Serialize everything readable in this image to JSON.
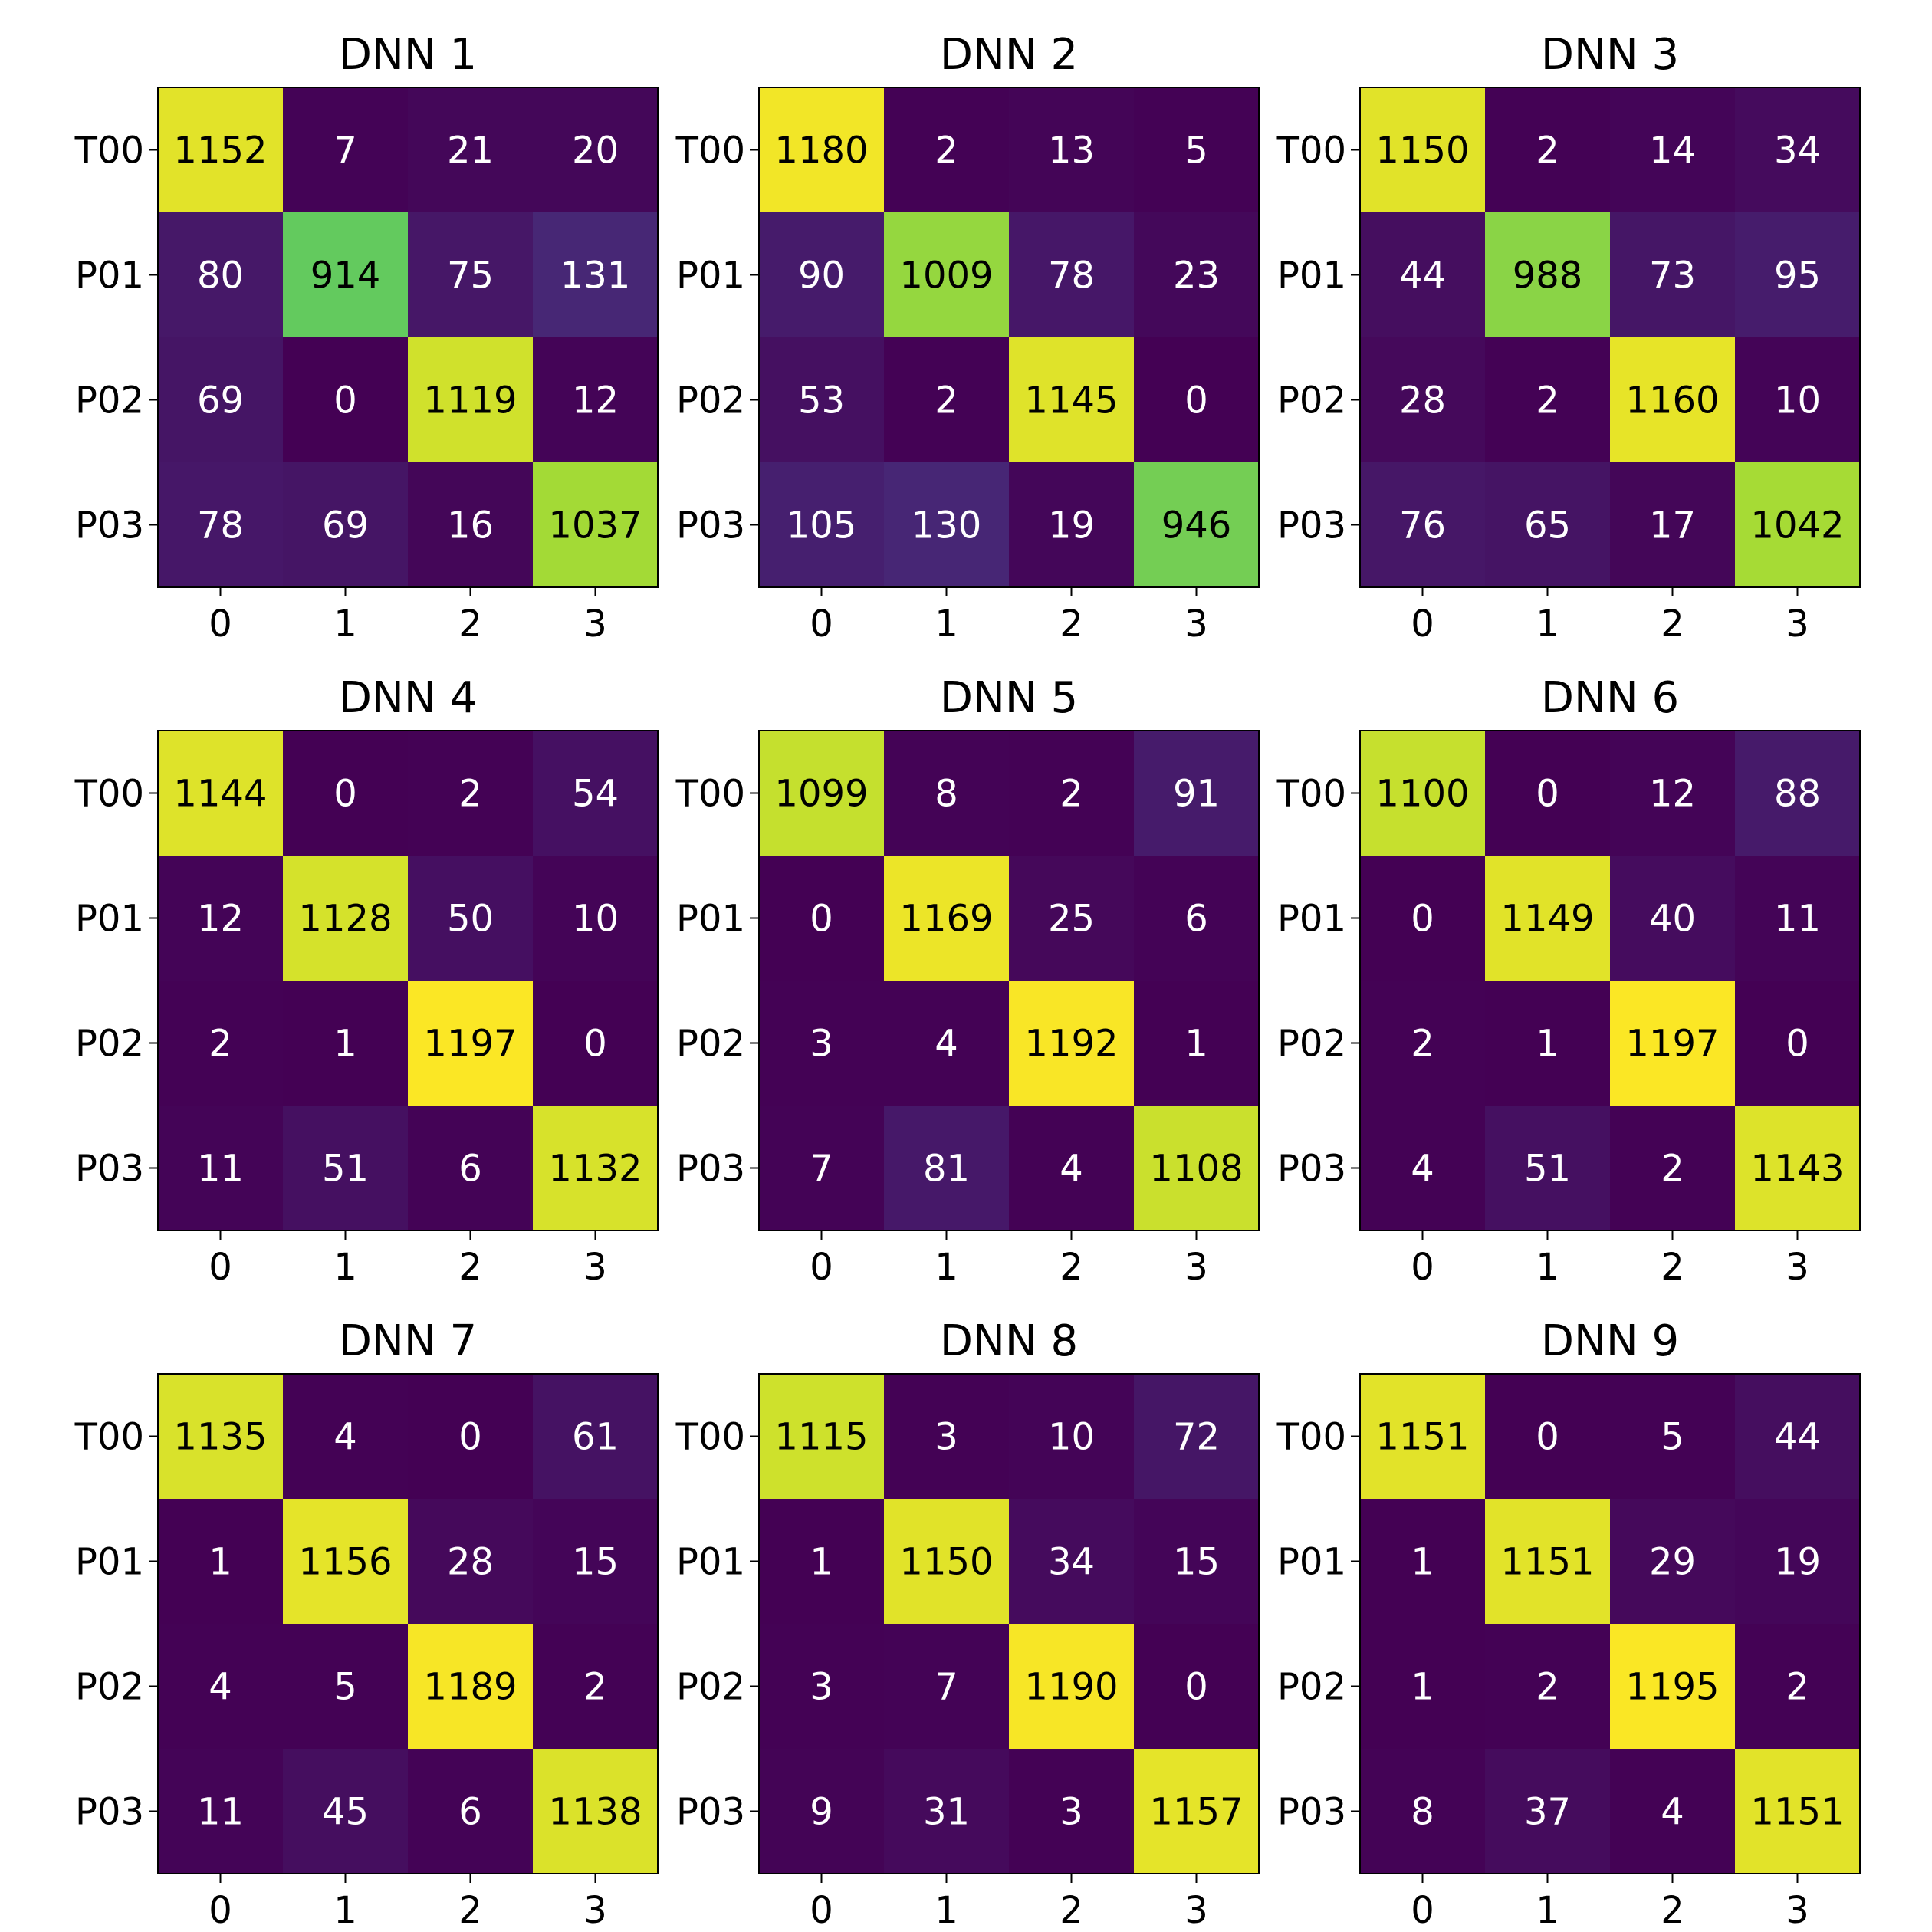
{
  "chart_data": [
    {
      "type": "heatmap",
      "title": "DNN 1",
      "row_labels": [
        "T00",
        "P01",
        "P02",
        "P03"
      ],
      "col_labels": [
        "0",
        "1",
        "2",
        "3"
      ],
      "values": [
        [
          1152,
          7,
          21,
          20
        ],
        [
          80,
          914,
          75,
          131
        ],
        [
          69,
          0,
          1119,
          12
        ],
        [
          78,
          69,
          16,
          1037
        ]
      ],
      "colormap": "viridis",
      "value_range": [
        0,
        1200
      ]
    },
    {
      "type": "heatmap",
      "title": "DNN 2",
      "row_labels": [
        "T00",
        "P01",
        "P02",
        "P03"
      ],
      "col_labels": [
        "0",
        "1",
        "2",
        "3"
      ],
      "values": [
        [
          1180,
          2,
          13,
          5
        ],
        [
          90,
          1009,
          78,
          23
        ],
        [
          53,
          2,
          1145,
          0
        ],
        [
          105,
          130,
          19,
          946
        ]
      ],
      "colormap": "viridis",
      "value_range": [
        0,
        1200
      ]
    },
    {
      "type": "heatmap",
      "title": "DNN 3",
      "row_labels": [
        "T00",
        "P01",
        "P02",
        "P03"
      ],
      "col_labels": [
        "0",
        "1",
        "2",
        "3"
      ],
      "values": [
        [
          1150,
          2,
          14,
          34
        ],
        [
          44,
          988,
          73,
          95
        ],
        [
          28,
          2,
          1160,
          10
        ],
        [
          76,
          65,
          17,
          1042
        ]
      ],
      "colormap": "viridis",
      "value_range": [
        0,
        1200
      ]
    },
    {
      "type": "heatmap",
      "title": "DNN 4",
      "row_labels": [
        "T00",
        "P01",
        "P02",
        "P03"
      ],
      "col_labels": [
        "0",
        "1",
        "2",
        "3"
      ],
      "values": [
        [
          1144,
          0,
          2,
          54
        ],
        [
          12,
          1128,
          50,
          10
        ],
        [
          2,
          1,
          1197,
          0
        ],
        [
          11,
          51,
          6,
          1132
        ]
      ],
      "colormap": "viridis",
      "value_range": [
        0,
        1200
      ]
    },
    {
      "type": "heatmap",
      "title": "DNN 5",
      "row_labels": [
        "T00",
        "P01",
        "P02",
        "P03"
      ],
      "col_labels": [
        "0",
        "1",
        "2",
        "3"
      ],
      "values": [
        [
          1099,
          8,
          2,
          91
        ],
        [
          0,
          1169,
          25,
          6
        ],
        [
          3,
          4,
          1192,
          1
        ],
        [
          7,
          81,
          4,
          1108
        ]
      ],
      "colormap": "viridis",
      "value_range": [
        0,
        1200
      ]
    },
    {
      "type": "heatmap",
      "title": "DNN 6",
      "row_labels": [
        "T00",
        "P01",
        "P02",
        "P03"
      ],
      "col_labels": [
        "0",
        "1",
        "2",
        "3"
      ],
      "values": [
        [
          1100,
          0,
          12,
          88
        ],
        [
          0,
          1149,
          40,
          11
        ],
        [
          2,
          1,
          1197,
          0
        ],
        [
          4,
          51,
          2,
          1143
        ]
      ],
      "colormap": "viridis",
      "value_range": [
        0,
        1200
      ]
    },
    {
      "type": "heatmap",
      "title": "DNN 7",
      "row_labels": [
        "T00",
        "P01",
        "P02",
        "P03"
      ],
      "col_labels": [
        "0",
        "1",
        "2",
        "3"
      ],
      "values": [
        [
          1135,
          4,
          0,
          61
        ],
        [
          1,
          1156,
          28,
          15
        ],
        [
          4,
          5,
          1189,
          2
        ],
        [
          11,
          45,
          6,
          1138
        ]
      ],
      "colormap": "viridis",
      "value_range": [
        0,
        1200
      ]
    },
    {
      "type": "heatmap",
      "title": "DNN 8",
      "row_labels": [
        "T00",
        "P01",
        "P02",
        "P03"
      ],
      "col_labels": [
        "0",
        "1",
        "2",
        "3"
      ],
      "values": [
        [
          1115,
          3,
          10,
          72
        ],
        [
          1,
          1150,
          34,
          15
        ],
        [
          3,
          7,
          1190,
          0
        ],
        [
          9,
          31,
          3,
          1157
        ]
      ],
      "colormap": "viridis",
      "value_range": [
        0,
        1200
      ]
    },
    {
      "type": "heatmap",
      "title": "DNN 9",
      "row_labels": [
        "T00",
        "P01",
        "P02",
        "P03"
      ],
      "col_labels": [
        "0",
        "1",
        "2",
        "3"
      ],
      "values": [
        [
          1151,
          0,
          5,
          44
        ],
        [
          1,
          1151,
          29,
          19
        ],
        [
          1,
          2,
          1195,
          2
        ],
        [
          8,
          37,
          4,
          1151
        ]
      ],
      "colormap": "viridis",
      "value_range": [
        0,
        1200
      ]
    }
  ]
}
